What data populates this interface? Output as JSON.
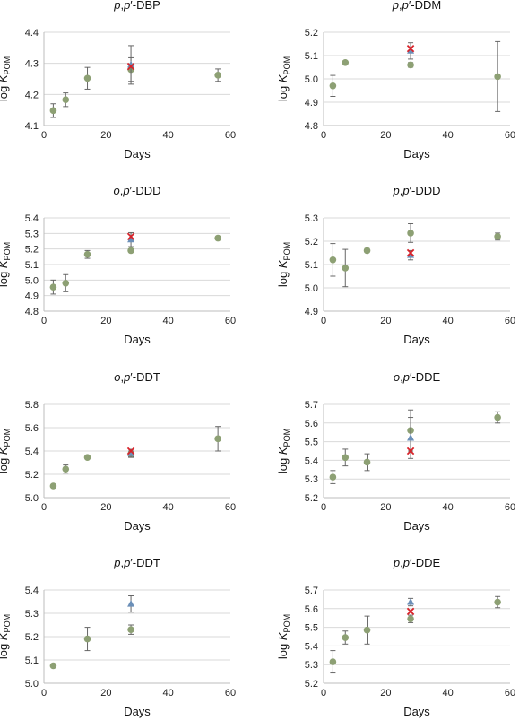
{
  "colors": {
    "circle": "#8da074",
    "triangle": "#6b8fb8",
    "cross": "#d8232a",
    "errorbar": "#666666",
    "gridline": "#d9d9d9"
  },
  "chart_data": [
    {
      "type": "scatter",
      "title_parts": [
        {
          "t": "p",
          "i": true
        },
        {
          "t": ",",
          "i": false
        },
        {
          "t": "p",
          "i": true
        },
        {
          "t": "′-DBP",
          "i": false
        }
      ],
      "xlabel": "Days",
      "ylabel_main": "log ",
      "ylabel_k": "K",
      "ylabel_sub": "POM",
      "xlim": [
        0,
        60
      ],
      "xticks": [
        0,
        20,
        40,
        60
      ],
      "ylim": [
        4.1,
        4.4
      ],
      "yticks": [
        "4.1",
        "4.2",
        "4.3",
        "4.4"
      ],
      "grid": true,
      "series": [
        {
          "marker": "circle",
          "points": [
            {
              "x": 3,
              "y": 4.148,
              "err": 0.022
            },
            {
              "x": 7,
              "y": 4.183,
              "err": 0.022
            },
            {
              "x": 14,
              "y": 4.252,
              "err": 0.035
            },
            {
              "x": 28,
              "y": 4.28,
              "err": 0.038
            },
            {
              "x": 56,
              "y": 4.262,
              "err": 0.02
            }
          ]
        },
        {
          "marker": "triangle",
          "points": [
            {
              "x": 28,
              "y": 4.295,
              "err": 0.062
            }
          ]
        },
        {
          "marker": "cross",
          "points": [
            {
              "x": 28,
              "y": 4.29,
              "err": 0
            }
          ]
        }
      ]
    },
    {
      "type": "scatter",
      "title_parts": [
        {
          "t": "p",
          "i": true
        },
        {
          "t": ",",
          "i": false
        },
        {
          "t": "p",
          "i": true
        },
        {
          "t": "′-DDM",
          "i": false
        }
      ],
      "xlabel": "Days",
      "ylabel_main": "log ",
      "ylabel_k": "K",
      "ylabel_sub": "POM",
      "xlim": [
        0,
        60
      ],
      "xticks": [
        0,
        20,
        40,
        60
      ],
      "ylim": [
        4.8,
        5.2
      ],
      "yticks": [
        "4.8",
        "4.9",
        "5.0",
        "5.1",
        "5.2"
      ],
      "grid": true,
      "series": [
        {
          "marker": "circle",
          "points": [
            {
              "x": 3,
              "y": 4.97,
              "err": 0.045
            },
            {
              "x": 7,
              "y": 5.07,
              "err": 0
            },
            {
              "x": 28,
              "y": 5.06,
              "err": 0.01
            },
            {
              "x": 56,
              "y": 5.01,
              "err": 0.15
            }
          ]
        },
        {
          "marker": "triangle",
          "points": [
            {
              "x": 28,
              "y": 5.12,
              "err": 0.035
            }
          ]
        },
        {
          "marker": "cross",
          "points": [
            {
              "x": 28,
              "y": 5.13,
              "err": 0
            }
          ]
        }
      ]
    },
    {
      "type": "scatter",
      "title_parts": [
        {
          "t": "o",
          "i": true
        },
        {
          "t": ",",
          "i": false
        },
        {
          "t": "p",
          "i": true
        },
        {
          "t": "′-DDD",
          "i": false
        }
      ],
      "xlabel": "Days",
      "ylabel_main": "log ",
      "ylabel_k": "K",
      "ylabel_sub": "POM",
      "xlim": [
        0,
        60
      ],
      "xticks": [
        0,
        20,
        40,
        60
      ],
      "ylim": [
        4.8,
        5.4
      ],
      "yticks": [
        "4.8",
        "4.9",
        "5.0",
        "5.1",
        "5.2",
        "5.3",
        "5.4"
      ],
      "grid": true,
      "series": [
        {
          "marker": "circle",
          "points": [
            {
              "x": 3,
              "y": 4.955,
              "err": 0.045
            },
            {
              "x": 7,
              "y": 4.98,
              "err": 0.055
            },
            {
              "x": 14,
              "y": 5.165,
              "err": 0.025
            },
            {
              "x": 28,
              "y": 5.19,
              "err": 0.01
            },
            {
              "x": 56,
              "y": 5.27,
              "err": 0.01
            }
          ]
        },
        {
          "marker": "triangle",
          "points": [
            {
              "x": 28,
              "y": 5.26,
              "err": 0.045
            }
          ]
        },
        {
          "marker": "cross",
          "points": [
            {
              "x": 28,
              "y": 5.28,
              "err": 0
            }
          ]
        }
      ]
    },
    {
      "type": "scatter",
      "title_parts": [
        {
          "t": "p",
          "i": true
        },
        {
          "t": ",",
          "i": false
        },
        {
          "t": "p",
          "i": true
        },
        {
          "t": "′-DDD",
          "i": false
        }
      ],
      "xlabel": "Days",
      "ylabel_main": "log ",
      "ylabel_k": "K",
      "ylabel_sub": "POM",
      "xlim": [
        0,
        60
      ],
      "xticks": [
        0,
        20,
        40,
        60
      ],
      "ylim": [
        4.9,
        5.3
      ],
      "yticks": [
        "4.9",
        "5.0",
        "5.1",
        "5.2",
        "5.3"
      ],
      "grid": true,
      "series": [
        {
          "marker": "circle",
          "points": [
            {
              "x": 3,
              "y": 5.12,
              "err": 0.07
            },
            {
              "x": 7,
              "y": 5.085,
              "err": 0.08
            },
            {
              "x": 14,
              "y": 5.16,
              "err": 0.008
            },
            {
              "x": 28,
              "y": 5.235,
              "err": 0.04
            },
            {
              "x": 56,
              "y": 5.22,
              "err": 0.015
            }
          ]
        },
        {
          "marker": "triangle",
          "points": [
            {
              "x": 28,
              "y": 5.14,
              "err": 0.02
            }
          ]
        },
        {
          "marker": "cross",
          "points": [
            {
              "x": 28,
              "y": 5.15,
              "err": 0
            }
          ]
        }
      ]
    },
    {
      "type": "scatter",
      "title_parts": [
        {
          "t": "o",
          "i": true
        },
        {
          "t": ",",
          "i": false
        },
        {
          "t": "p",
          "i": true
        },
        {
          "t": "′-DDT",
          "i": false
        }
      ],
      "xlabel": "Days",
      "ylabel_main": "log ",
      "ylabel_k": "K",
      "ylabel_sub": "POM",
      "xlim": [
        0,
        60
      ],
      "xticks": [
        0,
        20,
        40,
        60
      ],
      "ylim": [
        5.0,
        5.8
      ],
      "yticks": [
        "5.0",
        "5.2",
        "5.4",
        "5.6",
        "5.8"
      ],
      "grid": true,
      "series": [
        {
          "marker": "circle",
          "points": [
            {
              "x": 3,
              "y": 5.1,
              "err": 0.01
            },
            {
              "x": 7,
              "y": 5.245,
              "err": 0.035
            },
            {
              "x": 14,
              "y": 5.345,
              "err": 0.01
            },
            {
              "x": 28,
              "y": 5.375,
              "err": 0.025
            },
            {
              "x": 56,
              "y": 5.505,
              "err": 0.105
            }
          ]
        },
        {
          "marker": "triangle",
          "points": [
            {
              "x": 28,
              "y": 5.38,
              "err": 0.035
            }
          ]
        },
        {
          "marker": "cross",
          "points": [
            {
              "x": 28,
              "y": 5.4,
              "err": 0
            }
          ]
        }
      ]
    },
    {
      "type": "scatter",
      "title_parts": [
        {
          "t": "o",
          "i": true
        },
        {
          "t": ",",
          "i": false
        },
        {
          "t": "p",
          "i": true
        },
        {
          "t": "′-DDE",
          "i": false
        }
      ],
      "xlabel": "Days",
      "ylabel_main": "log ",
      "ylabel_k": "K",
      "ylabel_sub": "POM",
      "xlim": [
        0,
        60
      ],
      "xticks": [
        0,
        20,
        40,
        60
      ],
      "ylim": [
        5.2,
        5.7
      ],
      "yticks": [
        "5.2",
        "5.3",
        "5.4",
        "5.5",
        "5.6",
        "5.7"
      ],
      "grid": true,
      "series": [
        {
          "marker": "circle",
          "points": [
            {
              "x": 3,
              "y": 5.31,
              "err": 0.035
            },
            {
              "x": 7,
              "y": 5.415,
              "err": 0.045
            },
            {
              "x": 14,
              "y": 5.39,
              "err": 0.045
            },
            {
              "x": 28,
              "y": 5.56,
              "err": 0.11
            },
            {
              "x": 56,
              "y": 5.63,
              "err": 0.03
            }
          ]
        },
        {
          "marker": "triangle",
          "points": [
            {
              "x": 28,
              "y": 5.52,
              "err": 0.11
            }
          ]
        },
        {
          "marker": "cross",
          "points": [
            {
              "x": 28,
              "y": 5.45,
              "err": 0
            }
          ]
        }
      ]
    },
    {
      "type": "scatter",
      "title_parts": [
        {
          "t": "p",
          "i": true
        },
        {
          "t": ",",
          "i": false
        },
        {
          "t": "p",
          "i": true
        },
        {
          "t": "′-DDT",
          "i": false
        }
      ],
      "xlabel": "Days",
      "ylabel_main": "log ",
      "ylabel_k": "K",
      "ylabel_sub": "POM",
      "xlim": [
        0,
        60
      ],
      "xticks": [
        0,
        20,
        40,
        60
      ],
      "ylim": [
        5.0,
        5.4
      ],
      "yticks": [
        "5.0",
        "5.1",
        "5.2",
        "5.3",
        "5.4"
      ],
      "grid": true,
      "series": [
        {
          "marker": "circle",
          "points": [
            {
              "x": 3,
              "y": 5.075,
              "err": 0.005
            },
            {
              "x": 14,
              "y": 5.19,
              "err": 0.05
            },
            {
              "x": 28,
              "y": 5.23,
              "err": 0.02
            }
          ]
        },
        {
          "marker": "triangle",
          "points": [
            {
              "x": 28,
              "y": 5.34,
              "err": 0.035
            }
          ]
        }
      ]
    },
    {
      "type": "scatter",
      "title_parts": [
        {
          "t": "p",
          "i": true
        },
        {
          "t": ",",
          "i": false
        },
        {
          "t": "p",
          "i": true
        },
        {
          "t": "′-DDE",
          "i": false
        }
      ],
      "xlabel": "Days",
      "ylabel_main": "log ",
      "ylabel_k": "K",
      "ylabel_sub": "POM",
      "xlim": [
        0,
        60
      ],
      "xticks": [
        0,
        20,
        40,
        60
      ],
      "ylim": [
        5.2,
        5.7
      ],
      "yticks": [
        "5.2",
        "5.3",
        "5.4",
        "5.5",
        "5.6",
        "5.7"
      ],
      "grid": true,
      "series": [
        {
          "marker": "circle",
          "points": [
            {
              "x": 3,
              "y": 5.315,
              "err": 0.06
            },
            {
              "x": 7,
              "y": 5.445,
              "err": 0.035
            },
            {
              "x": 14,
              "y": 5.485,
              "err": 0.075
            },
            {
              "x": 28,
              "y": 5.545,
              "err": 0.02
            },
            {
              "x": 56,
              "y": 5.635,
              "err": 0.03
            }
          ]
        },
        {
          "marker": "triangle",
          "points": [
            {
              "x": 28,
              "y": 5.635,
              "err": 0.02
            }
          ]
        },
        {
          "marker": "cross",
          "points": [
            {
              "x": 28,
              "y": 5.585,
              "err": 0
            }
          ]
        }
      ]
    }
  ]
}
